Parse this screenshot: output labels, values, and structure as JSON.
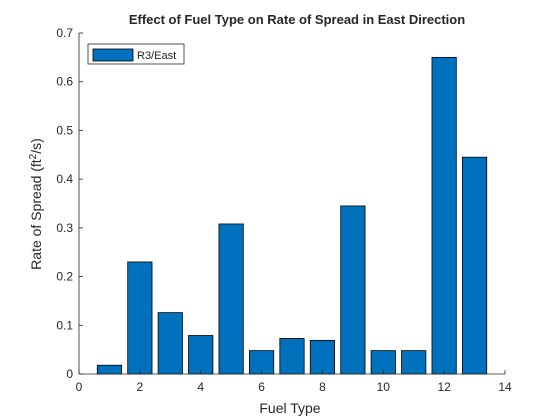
{
  "chart_data": {
    "type": "bar",
    "title": "Effect of Fuel Type on Rate of Spread in East Direction",
    "xlabel": "Fuel Type",
    "ylabel_main": "Rate of Spread (ft",
    "ylabel_sup": "2",
    "ylabel_end": "/s)",
    "xlim": [
      0,
      14
    ],
    "ylim": [
      0,
      0.7
    ],
    "xticks": [
      "0",
      "2",
      "4",
      "6",
      "8",
      "10",
      "12",
      "14"
    ],
    "yticks": [
      "0",
      "0.1",
      "0.2",
      "0.3",
      "0.4",
      "0.5",
      "0.6",
      "0.7"
    ],
    "grid": false,
    "legend_position": "top-left",
    "series": [
      {
        "name": "R3/East",
        "color": "#0072BD",
        "x": [
          1,
          2,
          3,
          4,
          5,
          6,
          7,
          8,
          9,
          10,
          11,
          12,
          13
        ],
        "values": [
          0.018,
          0.23,
          0.126,
          0.079,
          0.308,
          0.048,
          0.073,
          0.069,
          0.345,
          0.048,
          0.048,
          0.65,
          0.445
        ]
      }
    ]
  }
}
